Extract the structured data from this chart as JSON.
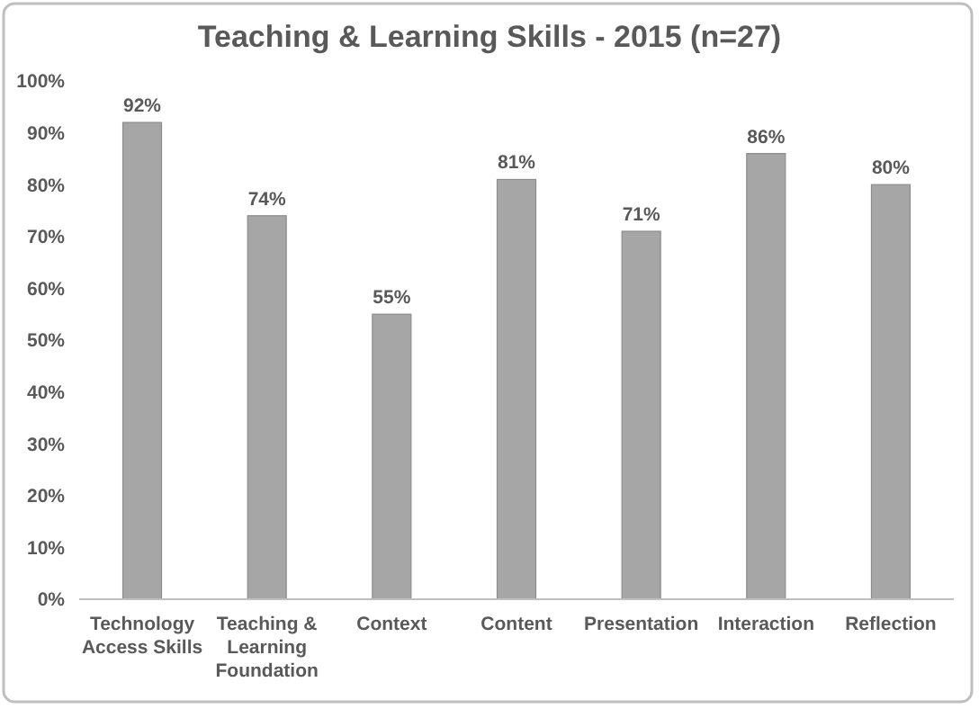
{
  "chart_data": {
    "type": "bar",
    "title": "Teaching & Learning Skills - 2015 (n=27)",
    "categories": [
      "Technology Access Skills",
      "Teaching & Learning Foundation",
      "Context",
      "Content",
      "Presentation",
      "Interaction",
      "Reflection"
    ],
    "values": [
      92,
      74,
      55,
      81,
      71,
      86,
      80
    ],
    "value_labels": [
      "92%",
      "74%",
      "55%",
      "81%",
      "71%",
      "86%",
      "80%"
    ],
    "color": "#a6a6a6",
    "ylim": [
      0,
      100
    ],
    "yticks": [
      {
        "value": 0,
        "label": "0%"
      },
      {
        "value": 10,
        "label": "10%"
      },
      {
        "value": 20,
        "label": "20%"
      },
      {
        "value": 30,
        "label": "30%"
      },
      {
        "value": 40,
        "label": "40%"
      },
      {
        "value": 50,
        "label": "50%"
      },
      {
        "value": 60,
        "label": "60%"
      },
      {
        "value": 70,
        "label": "70%"
      },
      {
        "value": 80,
        "label": "80%"
      },
      {
        "value": 90,
        "label": "90%"
      },
      {
        "value": 100,
        "label": "100%"
      }
    ],
    "grid": false
  }
}
